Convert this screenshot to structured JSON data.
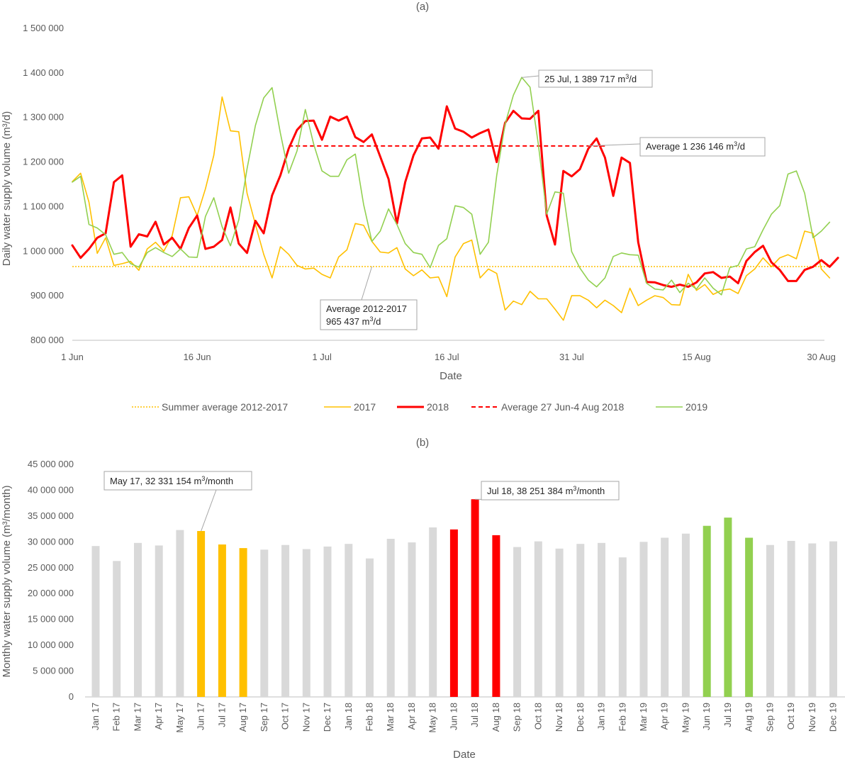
{
  "chart_data": [
    {
      "type": "line",
      "title": "(a)",
      "xlabel": "Date",
      "ylabel": "Daily water supply volume (m³/d)",
      "ylim": [
        800000,
        1500000
      ],
      "y_ticks": [
        "800 000",
        "900 000",
        "1 000 000",
        "1 100 000",
        "1 200 000",
        "1 300 000",
        "1 400 000",
        "1 500 000"
      ],
      "x_ticks": [
        {
          "day": 1,
          "label": "1 Jun"
        },
        {
          "day": 16,
          "label": "16 Jun"
        },
        {
          "day": 31,
          "label": "1 Jul"
        },
        {
          "day": 46,
          "label": "16 Jul"
        },
        {
          "day": 61,
          "label": "31 Jul"
        },
        {
          "day": 76,
          "label": "15 Aug"
        },
        {
          "day": 91,
          "label": "30 Aug"
        }
      ],
      "series": [
        {
          "name": "2017",
          "color": "#FFC000",
          "width": 1.6,
          "values": [
            1156000,
            1175000,
            1110000,
            995000,
            1030000,
            968000,
            972000,
            977000,
            957000,
            1005000,
            1020000,
            1000000,
            1035000,
            1120000,
            1122000,
            1080000,
            1140000,
            1215000,
            1346000,
            1270000,
            1268000,
            1130000,
            1060000,
            993000,
            940000,
            1010000,
            993000,
            968000,
            960000,
            962000,
            948000,
            940000,
            987000,
            1003000,
            1062000,
            1058000,
            1022000,
            998000,
            996000,
            1008000,
            960000,
            945000,
            958000,
            940000,
            942000,
            898000,
            987000,
            1017000,
            1025000,
            940000,
            960000,
            950000,
            868000,
            888000,
            880000,
            910000,
            893000,
            893000,
            870000,
            845000,
            900000,
            900000,
            890000,
            873000,
            890000,
            878000,
            862000,
            917000,
            878000,
            890000,
            900000,
            896000,
            880000,
            879000,
            948000,
            912000,
            925000,
            903000,
            912000,
            915000,
            905000,
            945000,
            960000,
            985000,
            965000,
            985000,
            992000,
            983000,
            1045000,
            1040000,
            960000,
            940000
          ]
        },
        {
          "name": "2018",
          "color": "#FF0000",
          "width": 3,
          "values": [
            1013000,
            985000,
            1005000,
            1030000,
            1040000,
            1155000,
            1170000,
            1010000,
            1038000,
            1033000,
            1066000,
            1015000,
            1030000,
            1005000,
            1052000,
            1080000,
            1005000,
            1010000,
            1025000,
            1098000,
            1017000,
            996000,
            1068000,
            1040000,
            1125000,
            1170000,
            1230000,
            1272000,
            1292000,
            1293000,
            1250000,
            1302000,
            1293000,
            1302000,
            1256000,
            1245000,
            1262000,
            1212000,
            1162000,
            1062000,
            1155000,
            1215000,
            1253000,
            1255000,
            1230000,
            1325000,
            1275000,
            1268000,
            1255000,
            1265000,
            1273000,
            1200000,
            1288000,
            1315000,
            1298000,
            1297000,
            1315000,
            1080000,
            1015000,
            1180000,
            1168000,
            1184000,
            1230000,
            1253000,
            1210000,
            1124000,
            1210000,
            1198000,
            1020000,
            931000,
            930000,
            924000,
            920000,
            925000,
            920000,
            930000,
            950000,
            953000,
            940000,
            943000,
            928000,
            978000,
            998000,
            1012000,
            975000,
            958000,
            933000,
            933000,
            958000,
            965000,
            980000,
            965000,
            985000
          ]
        },
        {
          "name": "2019",
          "color": "#92D050",
          "width": 1.6,
          "values": [
            1155000,
            1168000,
            1060000,
            1052000,
            1037000,
            993000,
            997000,
            972000,
            964000,
            997000,
            1008000,
            997000,
            988000,
            1005000,
            987000,
            986000,
            1078000,
            1120000,
            1055000,
            1012000,
            1070000,
            1185000,
            1282000,
            1344000,
            1367000,
            1265000,
            1175000,
            1225000,
            1318000,
            1240000,
            1180000,
            1168000,
            1168000,
            1205000,
            1218000,
            1105000,
            1022000,
            1045000,
            1095000,
            1060000,
            1017000,
            997000,
            993000,
            963000,
            1013000,
            1028000,
            1102000,
            1098000,
            1083000,
            993000,
            1020000,
            1170000,
            1285000,
            1350000,
            1390000,
            1368000,
            1240000,
            1083000,
            1133000,
            1130000,
            999000,
            962000,
            935000,
            920000,
            940000,
            988000,
            996000,
            992000,
            991000,
            928000,
            915000,
            913000,
            935000,
            907000,
            928000,
            915000,
            940000,
            917000,
            902000,
            963000,
            968000,
            1005000,
            1010000,
            1048000,
            1083000,
            1102000,
            1173000,
            1180000,
            1130000,
            1030000,
            1045000,
            1065000
          ]
        }
      ],
      "reference_lines": [
        {
          "name": "Summer average 2012-2017",
          "value": 965437,
          "color": "#FFC000",
          "style": "dotted",
          "from_day": 1,
          "to_day": 92
        },
        {
          "name": "Average 27 Jun-4 Aug 2018",
          "value": 1236146,
          "color": "#FF0000",
          "style": "dashed",
          "from_day": 27,
          "to_day": 65
        }
      ],
      "annotations": [
        {
          "id": "peak",
          "lines": [
            "25 Jul, 1 389 717 m3/d"
          ],
          "point_day": 55,
          "point_value": 1389717
        },
        {
          "id": "avg2018",
          "lines": [
            "Average  1 236 146 m3/d"
          ],
          "point_day": 63,
          "point_value": 1236146
        },
        {
          "id": "avg1217",
          "lines": [
            "Average  2012-2017",
            "965 437  m3/d"
          ],
          "point_day": 37,
          "point_value": 965437
        }
      ],
      "legend": {
        "position": "bottom",
        "items": [
          {
            "label": "Summer average 2012-2017",
            "color": "#FFC000",
            "style": "dotted"
          },
          {
            "label": "2017",
            "color": "#FFC000",
            "style": "solid"
          },
          {
            "label": "2018",
            "color": "#FF0000",
            "style": "solid-thick"
          },
          {
            "label": "Average 27 Jun-4 Aug 2018",
            "color": "#FF0000",
            "style": "dashed"
          },
          {
            "label": "2019",
            "color": "#92D050",
            "style": "solid"
          }
        ]
      }
    },
    {
      "type": "bar",
      "title": "(b)",
      "xlabel": "Date",
      "ylabel": "Monthly water supply volume (m³/month)",
      "ylim": [
        0,
        45000000
      ],
      "y_ticks": [
        "0",
        "5 000 000",
        "10 000 000",
        "15 000 000",
        "20 000 000",
        "25 000 000",
        "30 000 000",
        "35 000 000",
        "40 000 000",
        "45 000 000"
      ],
      "categories": [
        "Jan 17",
        "Feb 17",
        "Mar 17",
        "Apr 17",
        "May 17",
        "Jun 17",
        "Jul 17",
        "Aug 17",
        "Sep 17",
        "Oct 17",
        "Nov 17",
        "Dec 17",
        "Jan 18",
        "Feb 18",
        "Mar 18",
        "Apr 18",
        "May 18",
        "Jun 18",
        "Jul 18",
        "Aug 18",
        "Sep 18",
        "Oct 18",
        "Nov 18",
        "Dec 18",
        "Jan 19",
        "Feb 19",
        "Mar 19",
        "Apr 19",
        "May 19",
        "Jun 19",
        "Jul 19",
        "Aug 19",
        "Sep 19",
        "Oct 19",
        "Nov 19",
        "Dec 19"
      ],
      "values": [
        29200000,
        26300000,
        29800000,
        29300000,
        32300000,
        32100000,
        29500000,
        28800000,
        28500000,
        29400000,
        28600000,
        29100000,
        29600000,
        26800000,
        30600000,
        29900000,
        32800000,
        32400000,
        38251384,
        31300000,
        29000000,
        30100000,
        28700000,
        29600000,
        29800000,
        27000000,
        30000000,
        30800000,
        31600000,
        33100000,
        34700000,
        30800000,
        29400000,
        30200000,
        29700000,
        30100000
      ],
      "colors": [
        "#D9D9D9",
        "#D9D9D9",
        "#D9D9D9",
        "#D9D9D9",
        "#D9D9D9",
        "#FFC000",
        "#FFC000",
        "#FFC000",
        "#D9D9D9",
        "#D9D9D9",
        "#D9D9D9",
        "#D9D9D9",
        "#D9D9D9",
        "#D9D9D9",
        "#D9D9D9",
        "#D9D9D9",
        "#D9D9D9",
        "#FF0000",
        "#FF0000",
        "#FF0000",
        "#D9D9D9",
        "#D9D9D9",
        "#D9D9D9",
        "#D9D9D9",
        "#D9D9D9",
        "#D9D9D9",
        "#D9D9D9",
        "#D9D9D9",
        "#D9D9D9",
        "#92D050",
        "#92D050",
        "#92D050",
        "#D9D9D9",
        "#D9D9D9",
        "#D9D9D9",
        "#D9D9D9"
      ],
      "annotations": [
        {
          "id": "may17",
          "lines": [
            "May 17,   32 331 154  m3/month"
          ],
          "bar_index": 5
        },
        {
          "id": "jul18",
          "lines": [
            "Jul 18,   38 251 384  m3/month"
          ],
          "bar_index": 18
        }
      ]
    }
  ]
}
